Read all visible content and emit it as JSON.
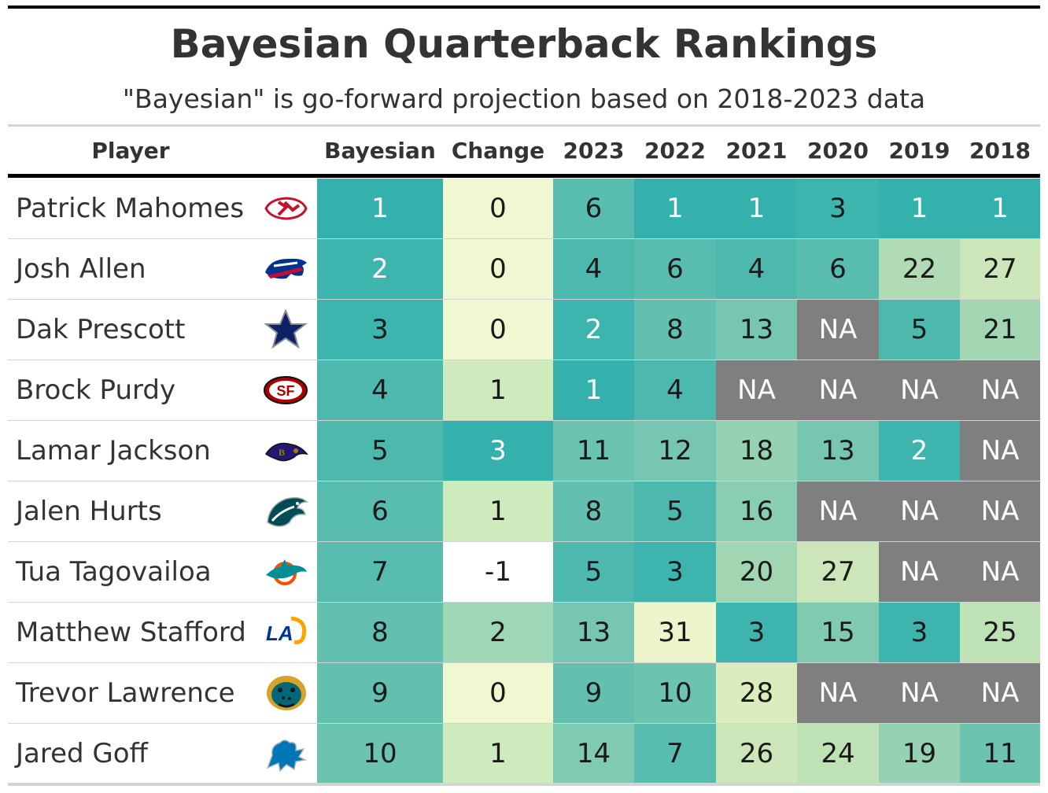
{
  "title": "Bayesian Quarterback Rankings",
  "subtitle": "\"Bayesian\" is go-forward projection based on 2018-2023 data",
  "chart_data": {
    "type": "table",
    "title": "Bayesian Quarterback Rankings",
    "subtitle": "\"Bayesian\" is go-forward projection based on 2018-2023 data",
    "columns": [
      "Player",
      "Bayesian",
      "Change",
      "2023",
      "2022",
      "2021",
      "2020",
      "2019",
      "2018"
    ],
    "na_label": "NA",
    "rows": [
      {
        "player": "Patrick Mahomes",
        "team_logo": "chiefs-logo-icon",
        "values": [
          "1",
          "0",
          "6",
          "1",
          "1",
          "3",
          "1",
          "1"
        ]
      },
      {
        "player": "Josh Allen",
        "team_logo": "bills-logo-icon",
        "values": [
          "2",
          "0",
          "4",
          "6",
          "4",
          "6",
          "22",
          "27"
        ]
      },
      {
        "player": "Dak Prescott",
        "team_logo": "cowboys-logo-icon",
        "values": [
          "3",
          "0",
          "2",
          "8",
          "13",
          "NA",
          "5",
          "21"
        ]
      },
      {
        "player": "Brock Purdy",
        "team_logo": "49ers-logo-icon",
        "values": [
          "4",
          "1",
          "1",
          "4",
          "NA",
          "NA",
          "NA",
          "NA"
        ]
      },
      {
        "player": "Lamar Jackson",
        "team_logo": "ravens-logo-icon",
        "values": [
          "5",
          "3",
          "11",
          "12",
          "18",
          "13",
          "2",
          "NA"
        ]
      },
      {
        "player": "Jalen Hurts",
        "team_logo": "eagles-logo-icon",
        "values": [
          "6",
          "1",
          "8",
          "5",
          "16",
          "NA",
          "NA",
          "NA"
        ]
      },
      {
        "player": "Tua Tagovailoa",
        "team_logo": "dolphins-logo-icon",
        "values": [
          "7",
          "-1",
          "5",
          "3",
          "20",
          "27",
          "NA",
          "NA"
        ]
      },
      {
        "player": "Matthew Stafford",
        "team_logo": "rams-logo-icon",
        "values": [
          "8",
          "2",
          "13",
          "31",
          "3",
          "15",
          "3",
          "25"
        ]
      },
      {
        "player": "Trevor Lawrence",
        "team_logo": "jaguars-logo-icon",
        "values": [
          "9",
          "0",
          "9",
          "10",
          "28",
          "NA",
          "NA",
          "NA"
        ]
      },
      {
        "player": "Jared Goff",
        "team_logo": "lions-logo-icon",
        "values": [
          "10",
          "1",
          "14",
          "7",
          "26",
          "24",
          "19",
          "11"
        ]
      }
    ]
  },
  "colors": {
    "rank_scale": [
      "#35b1ad",
      "#3eb4ae",
      "#4db8ae",
      "#58bcaf",
      "#63c0b0",
      "#6cc3b0",
      "#76c6b1",
      "#7fcab1",
      "#89cdb2",
      "#95d1b2",
      "#a2d6b3",
      "#b0dbb4",
      "#bfe1b6",
      "#cde6b9",
      "#dbedbf",
      "#ecf5cb"
    ],
    "change_scale": {
      "-1": "#ffffff",
      "0": "#f0f8d2",
      "1": "#cdebbd",
      "2": "#9ed7b5",
      "3": "#35b1ad"
    },
    "na": "#7f7f7f",
    "dark_text": "#1a1a1a",
    "light_text": "#ffffff"
  }
}
